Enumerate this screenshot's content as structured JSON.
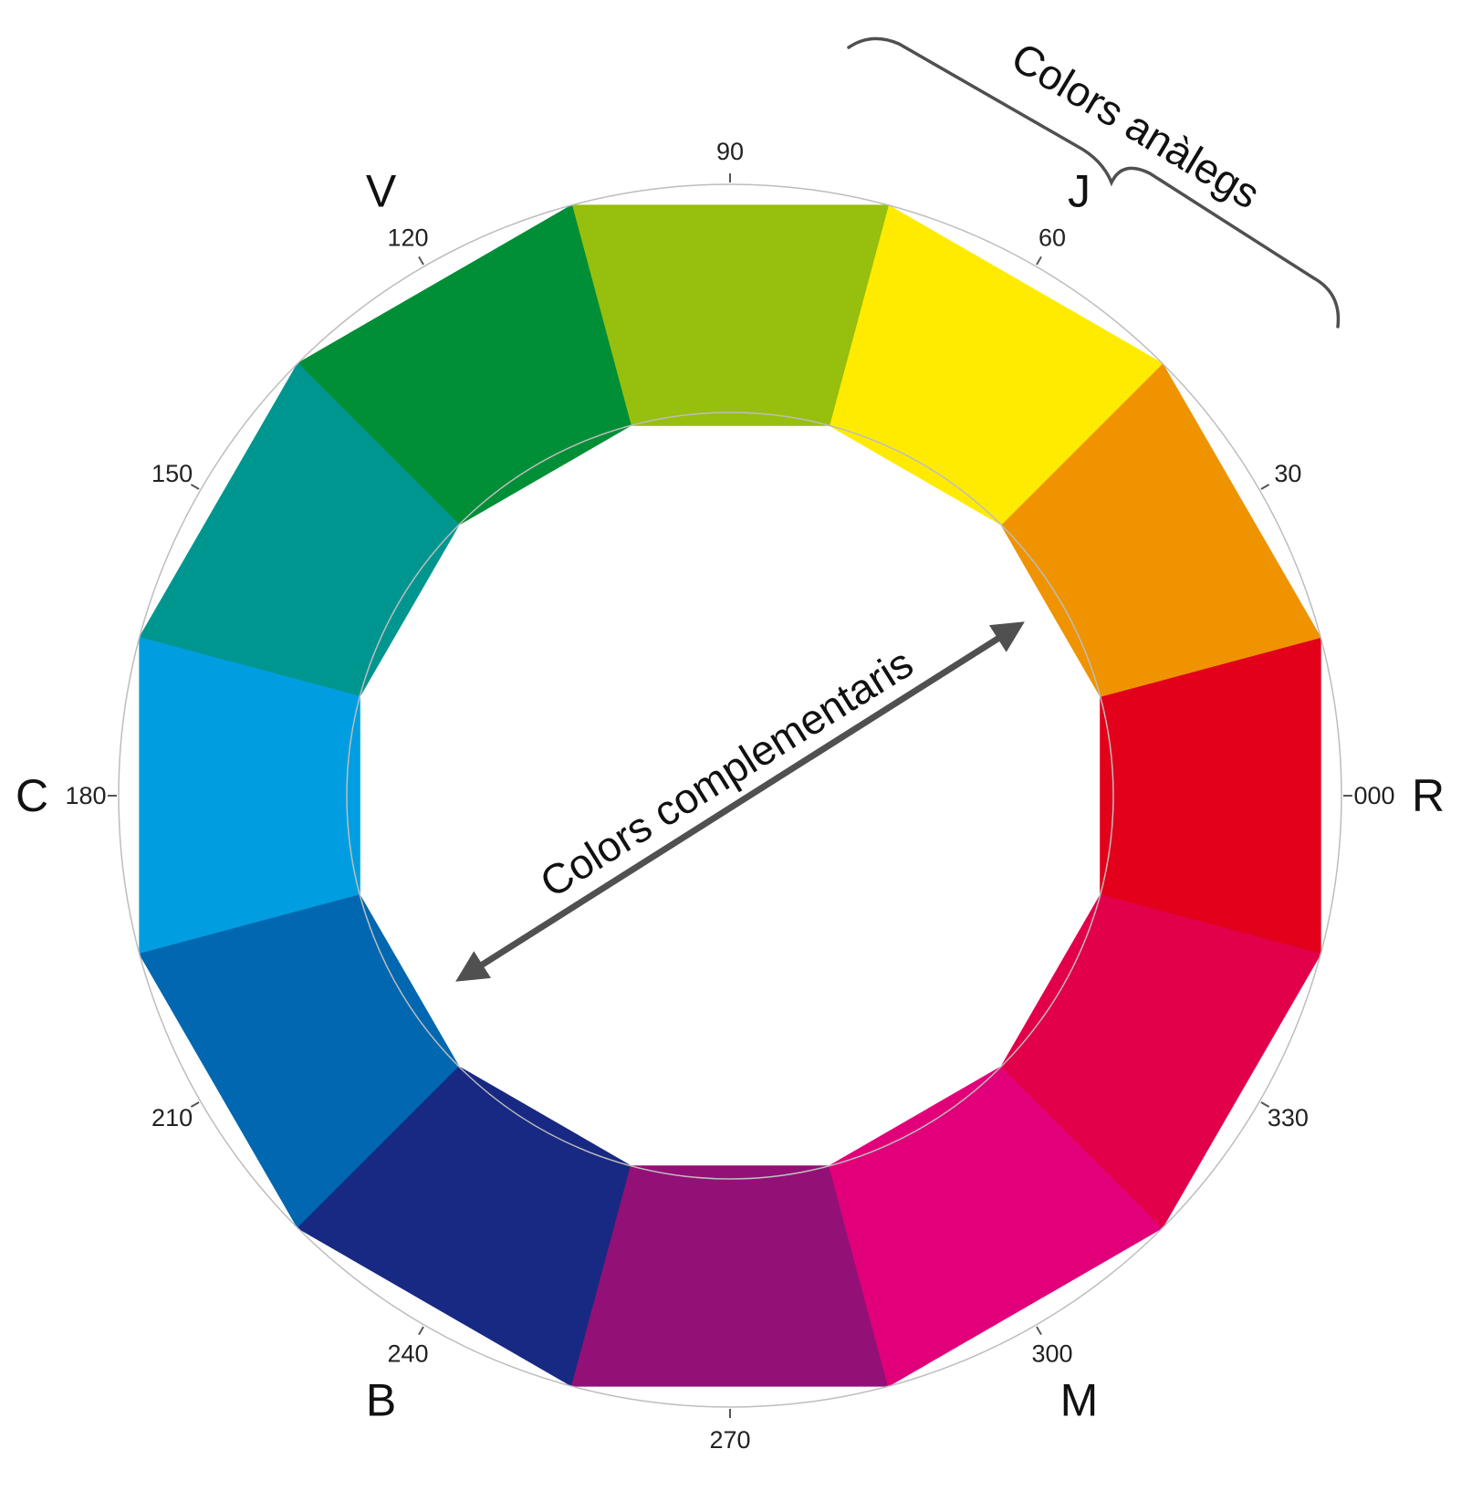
{
  "segments": [
    {
      "hue": "000",
      "color": "#e2001a"
    },
    {
      "hue": "30",
      "color": "#ef9300"
    },
    {
      "hue": "60",
      "color": "#ffeb00"
    },
    {
      "hue": "90",
      "color": "#97bf0d"
    },
    {
      "hue": "120",
      "color": "#008e36"
    },
    {
      "hue": "150",
      "color": "#009690"
    },
    {
      "hue": "180",
      "color": "#009ee0"
    },
    {
      "hue": "210",
      "color": "#0067b0"
    },
    {
      "hue": "240",
      "color": "#182983"
    },
    {
      "hue": "270",
      "color": "#931077"
    },
    {
      "hue": "300",
      "color": "#e2007a"
    },
    {
      "hue": "330",
      "color": "#e2004b"
    }
  ],
  "hue_letters": [
    {
      "angle": 0,
      "letter": "R"
    },
    {
      "angle": 60,
      "letter": "J"
    },
    {
      "angle": 120,
      "letter": "V"
    },
    {
      "angle": 180,
      "letter": "C"
    },
    {
      "angle": 240,
      "letter": "B"
    },
    {
      "angle": 300,
      "letter": "M"
    }
  ],
  "annotations": {
    "analogous": "Colors anàlegs",
    "complementary": "Colors complementaris"
  },
  "colors": {
    "arrow": "#505050",
    "bracket": "#505050",
    "ring_outline": "#bdbdbd"
  }
}
